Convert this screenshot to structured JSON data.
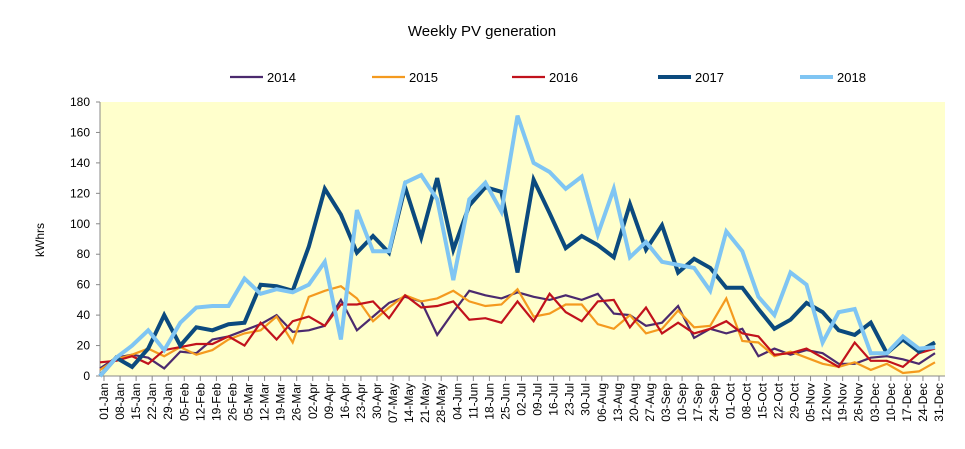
{
  "chart_data": {
    "type": "line",
    "title": "Weekly PV generation",
    "xlabel": "",
    "ylabel": "kWhrs",
    "ylim": [
      0,
      180
    ],
    "yticks": [
      0,
      20,
      40,
      60,
      80,
      100,
      120,
      140,
      160,
      180
    ],
    "grid": false,
    "legend_position": "top",
    "plot_background": "#ffffcc",
    "categories": [
      "01-Jan",
      "08-Jan",
      "15-Jan",
      "22-Jan",
      "29-Jan",
      "05-Feb",
      "12-Feb",
      "19-Feb",
      "26-Feb",
      "05-Mar",
      "12-Mar",
      "19-Mar",
      "26-Mar",
      "02-Apr",
      "09-Apr",
      "16-Apr",
      "23-Apr",
      "30-Apr",
      "07-May",
      "14-May",
      "21-May",
      "28-May",
      "04-Jun",
      "11-Jun",
      "18-Jun",
      "25-Jun",
      "02-Jul",
      "09-Jul",
      "16-Jul",
      "23-Jul",
      "30-Jul",
      "06-Aug",
      "13-Aug",
      "20-Aug",
      "27-Aug",
      "03-Sep",
      "10-Sep",
      "17-Sep",
      "24-Sep",
      "01-Oct",
      "08-Oct",
      "15-Oct",
      "22-Oct",
      "29-Oct",
      "05-Nov",
      "12-Nov",
      "19-Nov",
      "26-Nov",
      "03-Dec",
      "10-Dec",
      "17-Dec",
      "24-Dec",
      "31-Dec"
    ],
    "series": [
      {
        "name": "2014",
        "color": "#4b2a6e",
        "values": [
          5,
          12,
          14,
          12,
          5,
          16,
          15,
          24,
          26,
          30,
          34,
          40,
          29,
          30,
          33,
          50,
          30,
          39,
          48,
          52,
          49,
          27,
          42,
          56,
          53,
          51,
          55,
          52,
          50,
          53,
          50,
          54,
          41,
          40,
          33,
          35,
          46,
          25,
          31,
          28,
          31,
          13,
          18,
          14,
          17,
          15,
          8,
          8,
          12,
          13,
          11,
          8,
          15
        ]
      },
      {
        "name": "2015",
        "color": "#f49a1f",
        "values": [
          4,
          11,
          14,
          18,
          13,
          19,
          14,
          17,
          24,
          28,
          30,
          39,
          22,
          52,
          56,
          59,
          51,
          36,
          45,
          53,
          49,
          51,
          56,
          49,
          46,
          47,
          57,
          39,
          41,
          47,
          47,
          34,
          31,
          40,
          28,
          31,
          43,
          32,
          33,
          51,
          23,
          22,
          13,
          16,
          12,
          8,
          6,
          9,
          4,
          8,
          2,
          3,
          9
        ]
      },
      {
        "name": "2016",
        "color": "#c1121c",
        "values": [
          9,
          10,
          13,
          8,
          17,
          19,
          21,
          21,
          26,
          20,
          35,
          24,
          36,
          39,
          33,
          47,
          47,
          49,
          38,
          53,
          45,
          46,
          49,
          37,
          38,
          35,
          49,
          36,
          54,
          42,
          36,
          49,
          50,
          32,
          45,
          28,
          35,
          28,
          31,
          36,
          28,
          26,
          14,
          15,
          18,
          12,
          6,
          22,
          10,
          10,
          6,
          15,
          18
        ]
      },
      {
        "name": "2017",
        "color": "#0b4a7e",
        "values": [
          0,
          12,
          6,
          18,
          40,
          20,
          32,
          30,
          34,
          35,
          60,
          59,
          56,
          85,
          123,
          106,
          81,
          92,
          81,
          124,
          91,
          130,
          83,
          112,
          124,
          121,
          68,
          129,
          107,
          84,
          92,
          86,
          78,
          113,
          83,
          99,
          68,
          77,
          71,
          58,
          58,
          44,
          31,
          37,
          48,
          42,
          30,
          27,
          35,
          15,
          24,
          16,
          22
        ]
      },
      {
        "name": "2018",
        "color": "#7fc5f3",
        "values": [
          0,
          12,
          20,
          30,
          17,
          35,
          45,
          46,
          46,
          64,
          54,
          57,
          55,
          60,
          75,
          24,
          109,
          82,
          82,
          127,
          132,
          116,
          63,
          116,
          127,
          108,
          171,
          140,
          134,
          123,
          131,
          93,
          123,
          78,
          88,
          75,
          73,
          71,
          56,
          95,
          82,
          52,
          40,
          68,
          60,
          22,
          42,
          44,
          15,
          15,
          26,
          18,
          19
        ]
      }
    ]
  }
}
